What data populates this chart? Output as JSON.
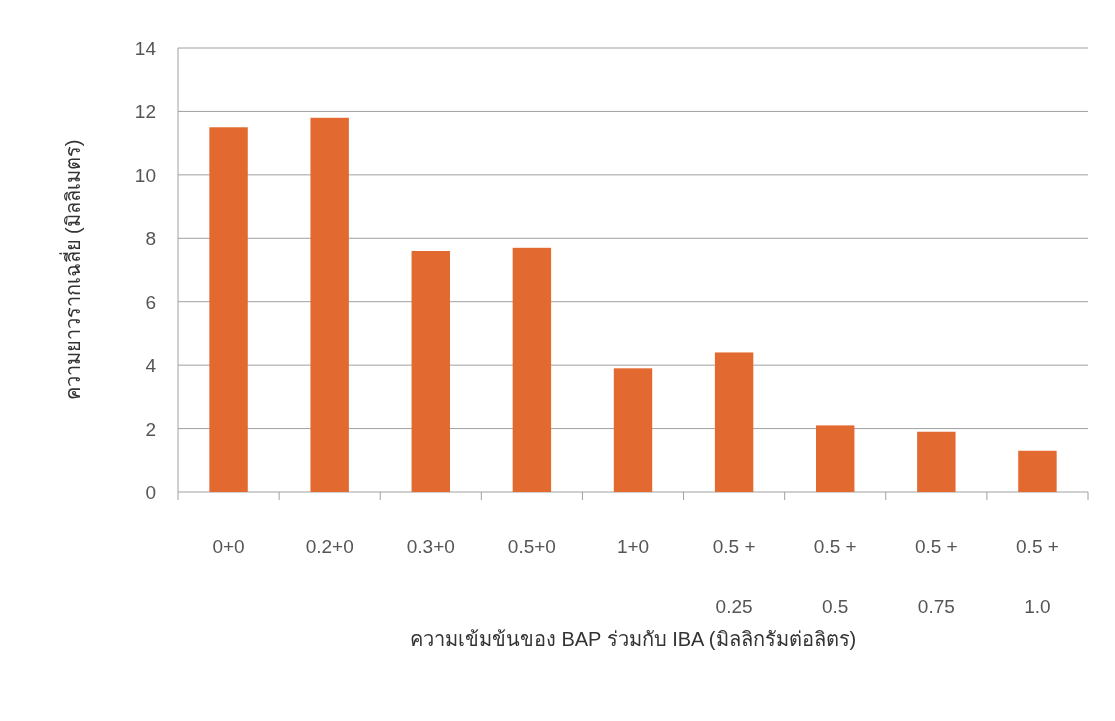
{
  "chart_data": {
    "type": "bar",
    "xlabel": "ความเข้มข้นของ BAP ร่วมกับ IBA (มิลลิกรัมต่อลิตร)",
    "ylabel": "ความยาวรากเฉลี่ย (มิลลิเมตร)",
    "categories": [
      "0+0",
      "0.2+0",
      "0.3+0",
      "0.5+0",
      "1+0",
      "0.5 + 0.25",
      "0.5 + 0.5",
      "0.5 + 0.75",
      "0.5 + 1.0"
    ],
    "values": [
      11.5,
      11.8,
      7.6,
      7.7,
      3.9,
      4.4,
      2.1,
      1.9,
      1.3
    ],
    "color": "#e2692f",
    "ylim": [
      0,
      14
    ],
    "yticks": [
      0,
      2,
      4,
      6,
      8,
      10,
      12,
      14
    ],
    "grid": "y"
  }
}
